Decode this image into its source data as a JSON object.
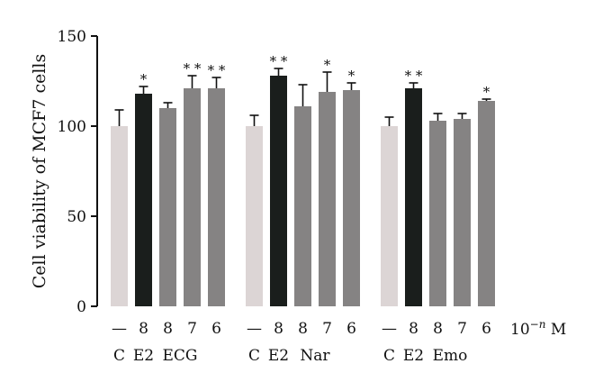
{
  "chart_data": {
    "type": "bar",
    "ylabel": "Cell viability of MCF7 cells",
    "ylim": [
      0,
      150
    ],
    "yticks": [
      0,
      50,
      100,
      150
    ],
    "dose_unit_label": "10",
    "dose_unit_exp": "−n",
    "dose_unit_suffix": " M",
    "colors": {
      "control": "#dcd5d5",
      "e2": "#1a1e1c",
      "treatment": "#858383",
      "axis": "#111111"
    },
    "groups": [
      {
        "bars": [
          {
            "condition": "C",
            "dose": "—",
            "value": 100,
            "error": 9,
            "sig": "",
            "kind": "control"
          },
          {
            "condition": "E2",
            "dose": "8",
            "value": 118,
            "error": 4,
            "sig": "*",
            "kind": "e2"
          },
          {
            "condition": "ECG",
            "dose": "8",
            "value": 110,
            "error": 3,
            "sig": "",
            "kind": "treatment"
          },
          {
            "condition": "",
            "dose": "7",
            "value": 121,
            "error": 7,
            "sig": "**",
            "kind": "treatment"
          },
          {
            "condition": "",
            "dose": "6",
            "value": 121,
            "error": 6,
            "sig": "**",
            "kind": "treatment"
          }
        ]
      },
      {
        "bars": [
          {
            "condition": "C",
            "dose": "—",
            "value": 100,
            "error": 6,
            "sig": "",
            "kind": "control"
          },
          {
            "condition": "E2",
            "dose": "8",
            "value": 128,
            "error": 4,
            "sig": "**",
            "kind": "e2"
          },
          {
            "condition": "Nar",
            "dose": "8",
            "value": 111,
            "error": 12,
            "sig": "",
            "kind": "treatment"
          },
          {
            "condition": "",
            "dose": "7",
            "value": 119,
            "error": 11,
            "sig": "*",
            "kind": "treatment"
          },
          {
            "condition": "",
            "dose": "6",
            "value": 120,
            "error": 4,
            "sig": "*",
            "kind": "treatment"
          }
        ]
      },
      {
        "bars": [
          {
            "condition": "C",
            "dose": "—",
            "value": 100,
            "error": 5,
            "sig": "",
            "kind": "control"
          },
          {
            "condition": "E2",
            "dose": "8",
            "value": 121,
            "error": 3,
            "sig": "**",
            "kind": "e2"
          },
          {
            "condition": "Emo",
            "dose": "8",
            "value": 103,
            "error": 4,
            "sig": "",
            "kind": "treatment"
          },
          {
            "condition": "",
            "dose": "7",
            "value": 104,
            "error": 3,
            "sig": "",
            "kind": "treatment"
          },
          {
            "condition": "",
            "dose": "6",
            "value": 114,
            "error": 1,
            "sig": "*",
            "kind": "treatment"
          }
        ]
      }
    ]
  }
}
